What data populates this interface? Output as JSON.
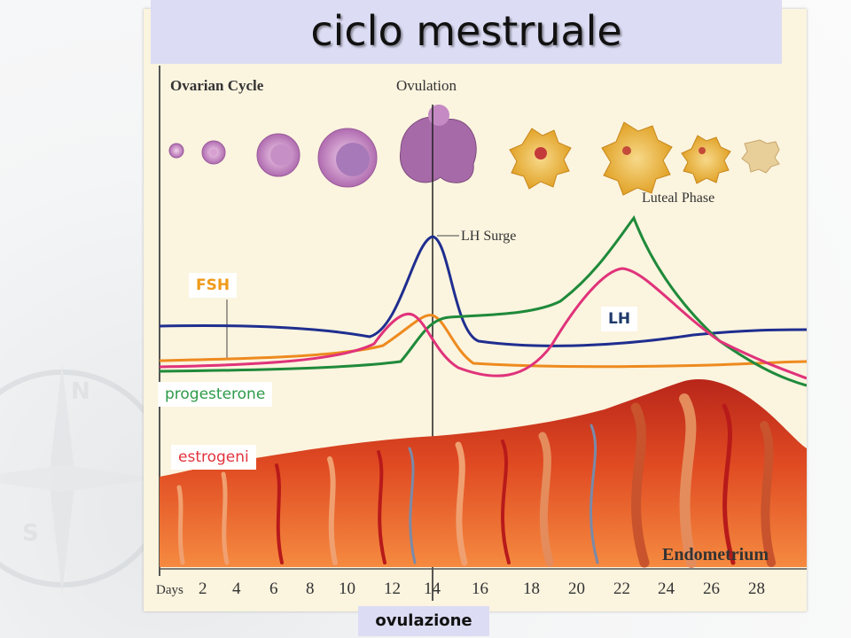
{
  "slide": {
    "title": "ciclo mestruale",
    "footer_label": "ovulazione"
  },
  "figure": {
    "ovarian_cycle_label": "Ovarian Cycle",
    "ovulation_label": "Ovulation",
    "luteal_phase_label": "Luteal Phase",
    "lh_surge_label": "LH Surge",
    "endometrium_label": "Endometrium",
    "days_label": "Days",
    "day_ticks": [
      "2",
      "4",
      "6",
      "8",
      "10",
      "12",
      "14",
      "16",
      "18",
      "20",
      "22",
      "24",
      "26",
      "28"
    ]
  },
  "hormone_labels": {
    "fsh": "FSH",
    "lh": "LH",
    "progesterone": "progesterone",
    "estrogen": "estrogeni"
  },
  "colors": {
    "fsh_curve": "#1f2e8f",
    "lh_curve": "#ee8a1e",
    "progesterone_curve": "#1f8a3a",
    "estrogen_curve": "#e0337a",
    "endometrium": "#d63a1f",
    "title_bg": "#dcdcf4"
  },
  "decorations": {
    "background_icon": "compass-rose-icon"
  }
}
